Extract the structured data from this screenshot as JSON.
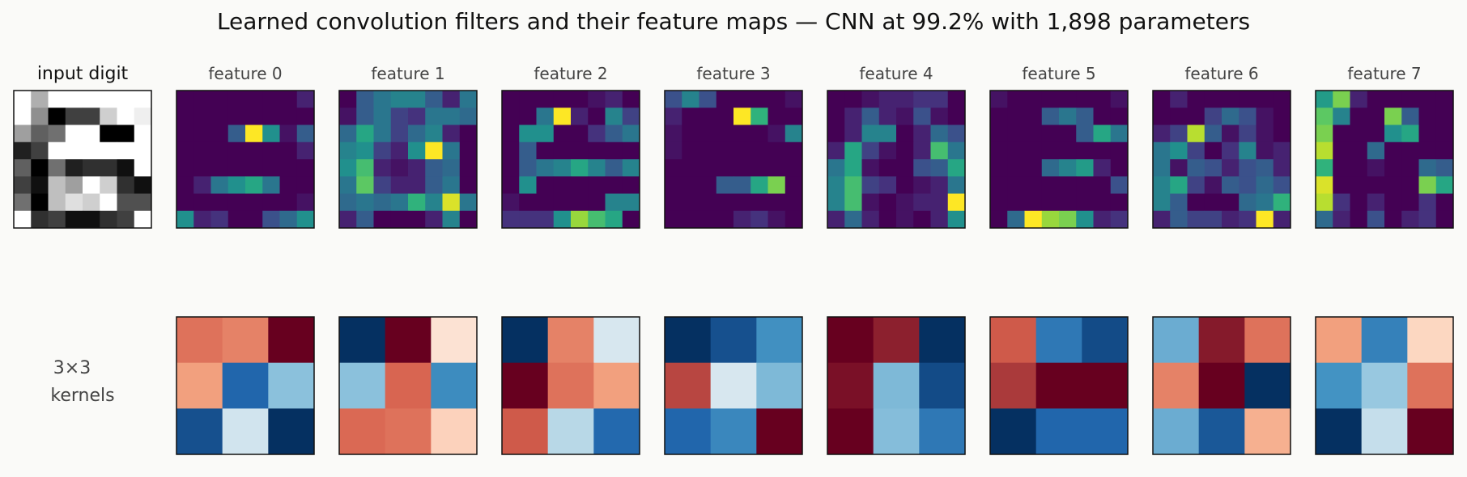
{
  "title": "Learned convolution filters and their feature maps — CNN at 99.2% with 1,898 parameters",
  "chart_data": {
    "type": "heatmap",
    "input": {
      "title": "input digit",
      "colormap": "gray_r",
      "grid": [
        [
          0,
          5,
          0,
          0,
          0,
          0,
          0,
          0
        ],
        [
          0,
          7,
          16,
          12,
          12,
          3,
          0,
          1
        ],
        [
          6,
          10,
          9,
          0,
          0,
          16,
          16,
          0
        ],
        [
          14,
          12,
          0,
          0,
          0,
          0,
          0,
          0
        ],
        [
          10,
          16,
          9,
          14,
          13,
          13,
          15,
          0
        ],
        [
          12,
          15,
          4,
          6,
          0,
          3,
          13,
          15
        ],
        [
          9,
          16,
          4,
          2,
          3,
          0,
          11,
          11
        ],
        [
          0,
          13,
          12,
          15,
          15,
          13,
          12,
          0
        ]
      ]
    },
    "feature_maps": [
      {
        "label": "feature 0",
        "grid": [
          [
            0,
            0,
            0,
            0,
            0,
            0,
            0,
            0.1
          ],
          [
            0,
            0,
            0,
            0,
            0,
            0,
            0,
            0
          ],
          [
            0,
            0,
            0,
            0.3,
            1,
            0.5,
            0.05,
            0.3
          ],
          [
            0,
            0,
            0,
            0,
            0,
            0,
            0,
            0.1
          ],
          [
            0,
            0,
            0,
            0,
            0,
            0,
            0,
            0
          ],
          [
            0,
            0.1,
            0.4,
            0.5,
            0.6,
            0.4,
            0,
            0
          ],
          [
            0,
            0,
            0,
            0,
            0,
            0,
            0,
            0.05
          ],
          [
            0.5,
            0.1,
            0.15,
            0,
            0,
            0.25,
            0.35,
            0.5
          ]
        ]
      },
      {
        "label": "feature 1",
        "grid": [
          [
            0,
            0.3,
            0.4,
            0.45,
            0.45,
            0.3,
            0.1,
            0.4
          ],
          [
            0.05,
            0.3,
            0.4,
            0.2,
            0.15,
            0.4,
            0.4,
            0.35
          ],
          [
            0.35,
            0.6,
            0.4,
            0.2,
            0.35,
            0.45,
            0.1,
            0
          ],
          [
            0.45,
            0.5,
            0.2,
            0.1,
            0.5,
            1,
            0.4,
            0
          ],
          [
            0.5,
            0.7,
            0.1,
            0.05,
            0.1,
            0.3,
            0.35,
            0
          ],
          [
            0.4,
            0.75,
            0.2,
            0.1,
            0.1,
            0.3,
            0.4,
            0
          ],
          [
            0.35,
            0.4,
            0.35,
            0.4,
            0.65,
            0.45,
            0.95,
            0.4
          ],
          [
            0.1,
            0.3,
            0,
            0,
            0,
            0.1,
            0.45,
            0
          ]
        ]
      },
      {
        "label": "feature 2",
        "grid": [
          [
            0,
            0,
            0,
            0,
            0,
            0.05,
            0.1,
            0
          ],
          [
            0,
            0,
            0.4,
            1,
            0.1,
            0,
            0.45,
            0.2
          ],
          [
            0,
            0.5,
            0.5,
            0,
            0,
            0.15,
            0.3,
            0.4
          ],
          [
            0,
            0.3,
            0,
            0,
            0,
            0,
            0,
            0
          ],
          [
            0,
            0.3,
            0.4,
            0.45,
            0.6,
            0.45,
            0.3,
            0.45
          ],
          [
            0,
            0.5,
            0,
            0,
            0,
            0,
            0,
            0
          ],
          [
            0.05,
            0,
            0,
            0,
            0,
            0,
            0.45,
            0.45
          ],
          [
            0.15,
            0.15,
            0.15,
            0.5,
            0.85,
            0.7,
            0.6,
            0
          ]
        ]
      },
      {
        "label": "feature 3",
        "grid": [
          [
            0.25,
            0.45,
            0.25,
            0,
            0,
            0,
            0,
            0.05
          ],
          [
            0.1,
            0,
            0,
            0,
            1,
            0.65,
            0,
            0
          ],
          [
            0.05,
            0,
            0,
            0,
            0,
            0,
            0.05,
            0.45
          ],
          [
            0.05,
            0,
            0,
            0,
            0,
            0,
            0,
            0
          ],
          [
            0,
            0,
            0,
            0,
            0,
            0,
            0,
            0
          ],
          [
            0,
            0,
            0,
            0.3,
            0.3,
            0.6,
            0.8,
            0
          ],
          [
            0,
            0,
            0,
            0,
            0,
            0,
            0,
            0
          ],
          [
            0,
            0,
            0,
            0,
            0.1,
            0.15,
            0.05,
            0
          ]
        ]
      },
      {
        "label": "feature 4",
        "grid": [
          [
            0,
            0,
            0.05,
            0.1,
            0.1,
            0.15,
            0.15,
            0
          ],
          [
            0,
            0.1,
            0.3,
            0.1,
            0.05,
            0.25,
            0.05,
            0
          ],
          [
            0,
            0.1,
            0.45,
            0.45,
            0,
            0.1,
            0.35,
            0.25
          ],
          [
            0.1,
            0.6,
            0.2,
            0.05,
            0,
            0.1,
            0.7,
            0.4
          ],
          [
            0.4,
            0.6,
            0.05,
            0,
            0,
            0.25,
            0.3,
            0.6
          ],
          [
            0.45,
            0.7,
            0.2,
            0.15,
            0,
            0.05,
            0.1,
            0.4
          ],
          [
            0.45,
            0.7,
            0.05,
            0,
            0.05,
            0.1,
            0.1,
            1
          ],
          [
            0.1,
            0.35,
            0.1,
            0,
            0.05,
            0,
            0.1,
            0.5
          ]
        ]
      },
      {
        "label": "feature 5",
        "grid": [
          [
            0.05,
            0,
            0,
            0,
            0,
            0,
            0,
            0.05
          ],
          [
            0,
            0,
            0,
            0.3,
            0.4,
            0.3,
            0,
            0
          ],
          [
            0,
            0,
            0,
            0,
            0,
            0.3,
            0.6,
            0.4
          ],
          [
            0,
            0,
            0,
            0,
            0,
            0,
            0,
            0
          ],
          [
            0,
            0,
            0,
            0.35,
            0.45,
            0.55,
            0.1,
            0
          ],
          [
            0,
            0,
            0,
            0,
            0,
            0,
            0,
            0.25
          ],
          [
            0,
            0,
            0,
            0,
            0,
            0,
            0,
            0
          ],
          [
            0,
            0.35,
            1,
            0.85,
            0.8,
            0.5,
            0.1,
            0.15
          ]
        ]
      },
      {
        "label": "feature 6",
        "grid": [
          [
            0,
            0.1,
            0,
            0,
            0,
            0,
            0,
            0
          ],
          [
            0,
            0,
            0,
            0.2,
            0.35,
            0.25,
            0.05,
            0
          ],
          [
            0.1,
            0.2,
            0.9,
            0.3,
            0.05,
            0.2,
            0.05,
            0
          ],
          [
            0.4,
            0.5,
            0.2,
            0,
            0.15,
            0.45,
            0.05,
            0.1
          ],
          [
            0.4,
            0.05,
            0.3,
            0.25,
            0.1,
            0.25,
            0.3,
            0.1
          ],
          [
            0.45,
            0.6,
            0.2,
            0.05,
            0.3,
            0.25,
            0.35,
            0.25
          ],
          [
            0.45,
            0.3,
            0,
            0,
            0,
            0.35,
            0.4,
            0.65
          ],
          [
            0.1,
            0.3,
            0.2,
            0.2,
            0.1,
            0.15,
            1,
            0.1
          ]
        ]
      },
      {
        "label": "feature 7",
        "grid": [
          [
            0.55,
            0.8,
            0.1,
            0,
            0,
            0,
            0,
            0
          ],
          [
            0.75,
            0.45,
            0,
            0,
            0.8,
            0.3,
            0,
            0
          ],
          [
            0.8,
            0,
            0,
            0,
            0.5,
            0.6,
            0,
            0
          ],
          [
            0.9,
            0,
            0,
            0.35,
            0,
            0,
            0,
            0
          ],
          [
            0.65,
            0,
            0,
            0.05,
            0,
            0,
            0.35,
            0.3
          ],
          [
            0.95,
            0,
            0,
            0,
            0,
            0,
            0.8,
            0.6
          ],
          [
            0.9,
            0.15,
            0,
            0.1,
            0,
            0,
            0.15,
            0
          ],
          [
            0.35,
            0.1,
            0,
            0.25,
            0,
            0.1,
            0.15,
            0
          ]
        ]
      }
    ],
    "kernels": {
      "row_label_line1": "3×3",
      "row_label_line2": "kernels",
      "colormap": "RdBu_r",
      "range": [
        -1,
        1
      ],
      "grids": [
        [
          [
            0.62,
            0.55,
            1.0
          ],
          [
            0.42,
            -0.7,
            -0.18
          ],
          [
            -0.82,
            -0.06,
            -1.0
          ]
        ],
        [
          [
            -1.0,
            1.0,
            0.12
          ],
          [
            -0.18,
            0.68,
            -0.45
          ],
          [
            0.66,
            0.62,
            0.2
          ]
        ],
        [
          [
            -1.0,
            0.55,
            -0.05
          ],
          [
            1.0,
            0.62,
            0.42
          ],
          [
            0.72,
            -0.1,
            -0.68
          ]
        ],
        [
          [
            -1.0,
            -0.82,
            -0.42
          ],
          [
            0.78,
            -0.05,
            -0.22
          ],
          [
            -0.7,
            -0.48,
            1.0
          ]
        ],
        [
          [
            1.0,
            0.9,
            -1.0
          ],
          [
            0.95,
            -0.22,
            -0.85
          ],
          [
            1.0,
            -0.2,
            -0.58
          ]
        ],
        [
          [
            0.72,
            -0.58,
            -0.85
          ],
          [
            0.82,
            1.0,
            1.0
          ],
          [
            -1.0,
            -0.7,
            -0.7
          ]
        ],
        [
          [
            -0.28,
            0.92,
            0.62
          ],
          [
            0.55,
            1.0,
            -1.0
          ],
          [
            -0.28,
            -0.78,
            0.35
          ]
        ],
        [
          [
            0.42,
            -0.52,
            0.18
          ],
          [
            -0.4,
            -0.15,
            0.62
          ],
          [
            -1.0,
            -0.08,
            1.0
          ]
        ]
      ]
    }
  }
}
